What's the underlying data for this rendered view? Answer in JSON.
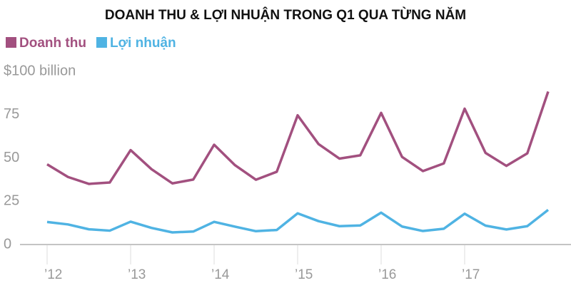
{
  "chart_data": {
    "type": "line",
    "title": "DOANH THU & LỢI NHUẬN TRONG Q1 QUA TỪNG NĂM",
    "categories": [
      "’12",
      null,
      null,
      null,
      "’13",
      null,
      null,
      null,
      "’14",
      null,
      null,
      null,
      "’15",
      null,
      null,
      null,
      "’16",
      null,
      null,
      null,
      "’17",
      null,
      null,
      null,
      null
    ],
    "series": [
      {
        "name": "Doanh thu",
        "color": "#a2507f",
        "values": [
          46.3,
          39,
          35,
          35.8,
          54.5,
          43.5,
          35.3,
          37.5,
          57.6,
          45.8,
          37.4,
          42,
          74.6,
          58,
          49.6,
          51.5,
          76,
          50.6,
          42.4,
          46.8,
          78.4,
          52.9,
          45.4,
          52.6,
          88.3
        ]
      },
      {
        "name": "Lợi nhuận",
        "color": "#4fb3e3",
        "values": [
          13,
          11.6,
          8.8,
          8,
          13.2,
          9.6,
          7,
          7.5,
          13.1,
          10.3,
          7.7,
          8.4,
          18,
          13.5,
          10.6,
          11,
          18.4,
          10.4,
          7.8,
          9.1,
          17.8,
          10.9,
          8.7,
          10.6,
          20
        ]
      }
    ],
    "ylim": [
      0,
      100
    ],
    "yticks": [
      0,
      25,
      50,
      75,
      {
        "value": 100,
        "label": "$100 billion"
      }
    ],
    "grid": false
  }
}
